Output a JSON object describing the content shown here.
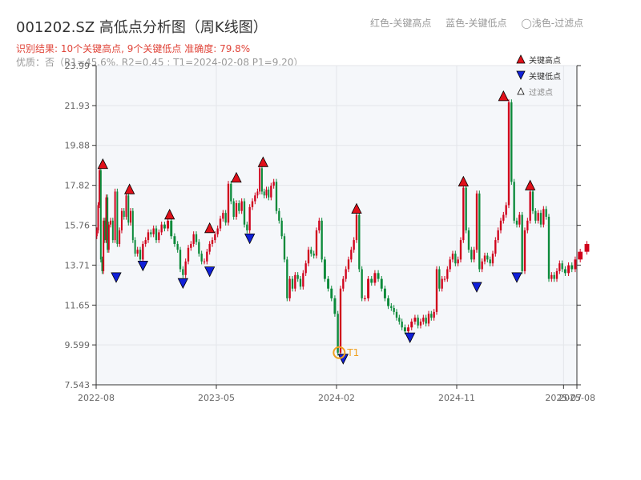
{
  "title": "001202.SZ 高低点分析图（周K线图）",
  "legend_top": {
    "red": "红色-关键高点",
    "blue": "蓝色-关键低点",
    "light": "◯浅色-过滤点"
  },
  "summary": "识别结果: 10个关键高点, 9个关键低点  准确度: 79.8%",
  "quality": "优质：否（R1=45.6%, R2=0.45 ; T1=2024-02-08 P1=9.20）",
  "side_legend": {
    "high": "关键高点",
    "low": "关键低点",
    "filtered": "过滤点"
  },
  "colors": {
    "up": "#d0011b",
    "down": "#0b8a3a",
    "high_marker": "#e0101a",
    "low_marker": "#1020d8",
    "annotation": "#f0a020",
    "plot_bg": "#f5f7fa"
  },
  "chart_data": {
    "type": "candlestick",
    "title": "001202.SZ 高低点分析图（周K线图）",
    "ylim": [
      7.543,
      23.99
    ],
    "y_ticks": [
      "23.99",
      "21.93",
      "19.88",
      "17.82",
      "15.76",
      "13.71",
      "11.65",
      "9.599",
      "7.543"
    ],
    "x_ticks": [
      "2022-08",
      "2023-05",
      "2024-02",
      "2024-11",
      "2025-07",
      "2025-08"
    ],
    "x_range": [
      "2022-08",
      "2025-08"
    ],
    "grid": true,
    "ohlc_by_month": [
      {
        "x": "2022-08",
        "prices": [
          15.5,
          16.8,
          18.6,
          14.0,
          13.4,
          16.0,
          15.0,
          17.2,
          14.5,
          15.8
        ]
      },
      {
        "x": "2022-09",
        "prices": [
          16.0,
          15.0,
          17.5,
          14.8,
          15.5,
          16.5
        ]
      },
      {
        "x": "2022-10",
        "prices": [
          16.2,
          17.3,
          15.9,
          16.5,
          15.0,
          14.3
        ]
      },
      {
        "x": "2022-11",
        "prices": [
          14.5,
          14.0,
          14.8,
          15.0,
          15.4
        ]
      },
      {
        "x": "2022-12",
        "prices": [
          15.3,
          15.6,
          15.0,
          15.4,
          15.8
        ]
      },
      {
        "x": "2023-01",
        "prices": [
          15.6,
          16.0,
          15.2,
          14.8
        ]
      },
      {
        "x": "2023-02",
        "prices": [
          14.5,
          13.5,
          13.2,
          13.9,
          14.6
        ]
      },
      {
        "x": "2023-03",
        "prices": [
          14.8,
          15.3,
          14.9,
          14.3,
          13.9
        ]
      },
      {
        "x": "2023-04",
        "prices": [
          13.9,
          14.4,
          14.8,
          15.0,
          15.3
        ]
      },
      {
        "x": "2023-05",
        "prices": [
          15.6,
          16.1,
          16.4,
          15.9,
          17.9
        ]
      },
      {
        "x": "2023-06",
        "prices": [
          17.0,
          16.2,
          16.9,
          16.5,
          17.0
        ]
      },
      {
        "x": "2023-07",
        "prices": [
          15.8,
          15.5,
          16.7,
          17.0,
          17.3
        ]
      },
      {
        "x": "2023-08",
        "prices": [
          17.5,
          18.7,
          17.5,
          17.3,
          17.6,
          17.2
        ]
      },
      {
        "x": "2023-09",
        "prices": [
          17.8,
          18.0,
          16.5,
          16.0,
          15.2
        ]
      },
      {
        "x": "2023-10",
        "prices": [
          14.0,
          12.0,
          13.0,
          12.5,
          13.2
        ]
      },
      {
        "x": "2023-11",
        "prices": [
          13.0,
          12.6,
          13.3,
          13.8,
          14.5
        ]
      },
      {
        "x": "2023-12",
        "prices": [
          14.3,
          14.2,
          15.5,
          16.0,
          14.0
        ]
      },
      {
        "x": "2024-01",
        "prices": [
          13.0,
          12.5,
          12.0,
          11.2
        ]
      },
      {
        "x": "2024-02",
        "prices": [
          9.2,
          12.5,
          13.0,
          13.5,
          14.0
        ]
      },
      {
        "x": "2024-03",
        "prices": [
          14.5,
          15.0,
          16.3,
          13.5,
          12.0
        ]
      },
      {
        "x": "2024-04",
        "prices": [
          12.0,
          13.0,
          12.8,
          13.3
        ]
      },
      {
        "x": "2024-05",
        "prices": [
          13.0,
          12.5,
          12.0,
          11.6
        ]
      },
      {
        "x": "2024-06",
        "prices": [
          11.5,
          11.3,
          11.0,
          10.8,
          10.5
        ]
      },
      {
        "x": "2024-07",
        "prices": [
          10.3,
          10.5,
          10.8,
          11.0
        ]
      },
      {
        "x": "2024-08",
        "prices": [
          10.6,
          10.8,
          11.0,
          10.7,
          11.2
        ]
      },
      {
        "x": "2024-09",
        "prices": [
          11.0,
          11.3,
          13.5,
          12.5,
          13.0
        ]
      },
      {
        "x": "2024-10",
        "prices": [
          13.0,
          13.5,
          14.0,
          14.3,
          13.8
        ]
      },
      {
        "x": "2024-11",
        "prices": [
          14.0,
          15.0,
          17.7,
          15.5,
          14.5
        ]
      },
      {
        "x": "2024-12",
        "prices": [
          14.0,
          14.5,
          17.4,
          13.5,
          13.9
        ]
      },
      {
        "x": "2025-01",
        "prices": [
          14.2,
          14.0,
          13.8,
          14.3,
          15.0
        ]
      },
      {
        "x": "2025-02",
        "prices": [
          15.5,
          16.0,
          16.3,
          16.8,
          22.1
        ]
      },
      {
        "x": "2025-03",
        "prices": [
          18.0,
          16.0,
          15.8,
          16.3,
          13.4
        ]
      },
      {
        "x": "2025-04",
        "prices": [
          15.5,
          16.0,
          17.5,
          16.5,
          16.0
        ]
      },
      {
        "x": "2025-05",
        "prices": [
          16.4,
          15.8,
          16.6,
          16.2,
          13.0
        ]
      },
      {
        "x": "2025-06",
        "prices": [
          13.2,
          13.0,
          13.4,
          13.8,
          13.5
        ]
      },
      {
        "x": "2025-07",
        "prices": [
          13.3,
          13.7,
          13.5,
          14.0
        ]
      },
      {
        "x": "2025-08",
        "prices": [
          14.4,
          14.8
        ]
      }
    ],
    "key_highs": [
      {
        "x": "2022-08",
        "y": 18.6
      },
      {
        "x": "2022-10",
        "y": 17.3
      },
      {
        "x": "2023-01",
        "y": 16.0
      },
      {
        "x": "2023-04",
        "y": 15.3
      },
      {
        "x": "2023-06",
        "y": 17.9
      },
      {
        "x": "2023-08",
        "y": 18.7
      },
      {
        "x": "2024-03",
        "y": 16.3
      },
      {
        "x": "2024-11",
        "y": 17.7
      },
      {
        "x": "2025-02",
        "y": 22.1
      },
      {
        "x": "2025-04",
        "y": 17.5
      }
    ],
    "key_lows": [
      {
        "x": "2022-09",
        "y": 13.4
      },
      {
        "x": "2022-11",
        "y": 14.0
      },
      {
        "x": "2023-02",
        "y": 13.1
      },
      {
        "x": "2023-04",
        "y": 13.7
      },
      {
        "x": "2023-07",
        "y": 15.4
      },
      {
        "x": "2024-02",
        "y": 9.2
      },
      {
        "x": "2024-07",
        "y": 10.3
      },
      {
        "x": "2024-12",
        "y": 12.9
      },
      {
        "x": "2025-03",
        "y": 13.4
      }
    ],
    "annotation": {
      "x": "2024-02",
      "y": 9.2,
      "label": "T1"
    }
  }
}
